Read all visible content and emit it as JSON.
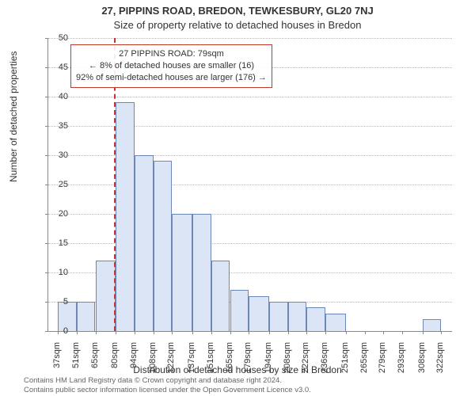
{
  "titles": {
    "line1": "27, PIPPINS ROAD, BREDON, TEWKESBURY, GL20 7NJ",
    "line2": "Size of property relative to detached houses in Bredon"
  },
  "chart": {
    "type": "histogram",
    "ylabel": "Number of detached properties",
    "xlabel": "Distribution of detached houses by size in Bredon",
    "ylim": [
      0,
      50
    ],
    "ytick_step": 5,
    "background_color": "#ffffff",
    "grid_color": "#bbbbbb",
    "axis_color": "#888888",
    "bar_fill": "#dbe5f6",
    "bar_stroke": "#6d87b8",
    "reference_line": {
      "x": 79,
      "color": "#cc3333",
      "dash": true
    },
    "label_fontsize": 12,
    "tick_fontsize": 11,
    "xtick_labels": [
      "37sqm",
      "51sqm",
      "65sqm",
      "80sqm",
      "94sqm",
      "108sqm",
      "122sqm",
      "137sqm",
      "151sqm",
      "165sqm",
      "179sqm",
      "194sqm",
      "208sqm",
      "222sqm",
      "236sqm",
      "251sqm",
      "265sqm",
      "279sqm",
      "293sqm",
      "308sqm",
      "322sqm"
    ],
    "xtick_positions": [
      37,
      51,
      65,
      80,
      94,
      108,
      122,
      137,
      151,
      165,
      179,
      194,
      208,
      222,
      236,
      251,
      265,
      279,
      293,
      308,
      322
    ],
    "xmin": 30,
    "xmax": 330,
    "bars": [
      {
        "x0": 37,
        "x1": 51,
        "y": 5
      },
      {
        "x0": 51,
        "x1": 65,
        "y": 5
      },
      {
        "x0": 65,
        "x1": 80,
        "y": 12
      },
      {
        "x0": 80,
        "x1": 94,
        "y": 39
      },
      {
        "x0": 94,
        "x1": 108,
        "y": 30
      },
      {
        "x0": 108,
        "x1": 122,
        "y": 29
      },
      {
        "x0": 122,
        "x1": 137,
        "y": 20
      },
      {
        "x0": 137,
        "x1": 151,
        "y": 20
      },
      {
        "x0": 151,
        "x1": 165,
        "y": 12
      },
      {
        "x0": 165,
        "x1": 179,
        "y": 7
      },
      {
        "x0": 179,
        "x1": 194,
        "y": 6
      },
      {
        "x0": 194,
        "x1": 208,
        "y": 5
      },
      {
        "x0": 208,
        "x1": 222,
        "y": 5
      },
      {
        "x0": 222,
        "x1": 236,
        "y": 4
      },
      {
        "x0": 236,
        "x1": 251,
        "y": 3
      },
      {
        "x0": 251,
        "x1": 265,
        "y": 0
      },
      {
        "x0": 265,
        "x1": 279,
        "y": 0
      },
      {
        "x0": 279,
        "x1": 293,
        "y": 0
      },
      {
        "x0": 293,
        "x1": 308,
        "y": 0
      },
      {
        "x0": 308,
        "x1": 322,
        "y": 2
      }
    ],
    "annotation": {
      "line1": "27 PIPPINS ROAD: 79sqm",
      "line2": "← 8% of detached houses are smaller (16)",
      "line3": "92% of semi-detached houses are larger (176) →",
      "border_color": "#c0392b"
    }
  },
  "footer": {
    "line1": "Contains HM Land Registry data © Crown copyright and database right 2024.",
    "line2": "Contains public sector information licensed under the Open Government Licence v3.0."
  }
}
